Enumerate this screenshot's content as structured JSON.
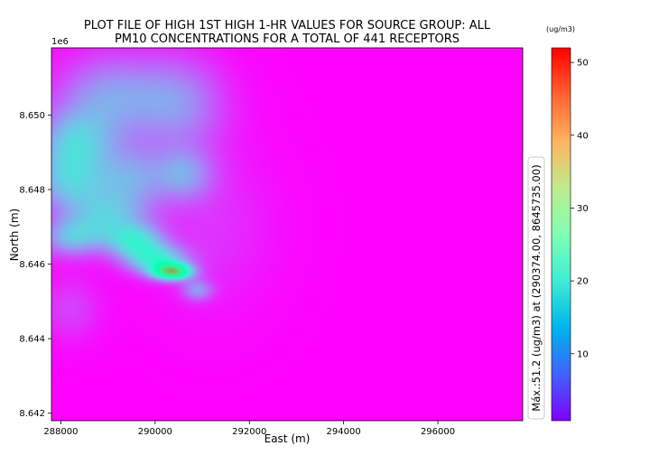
{
  "chart_data": {
    "type": "heatmap",
    "title_line1": "PLOT FILE OF HIGH 1ST HIGH  1-HR VALUES FOR SOURCE GROUP: ALL",
    "title_line2": "PM10 CONCENTRATIONS FOR A TOTAL OF 441 RECEPTORS",
    "xlabel": "East (m)",
    "ylabel": "North (m)",
    "y_offset_label": "1e6",
    "xlim": [
      287800,
      297800
    ],
    "ylim": [
      8641800,
      8651800
    ],
    "x_ticks": [
      {
        "value": 288000,
        "label": "288000"
      },
      {
        "value": 290000,
        "label": "290000"
      },
      {
        "value": 292000,
        "label": "292000"
      },
      {
        "value": 294000,
        "label": "294000"
      },
      {
        "value": 296000,
        "label": "296000"
      }
    ],
    "y_ticks": [
      {
        "value": 8642000,
        "label": "8.642"
      },
      {
        "value": 8644000,
        "label": "8.644"
      },
      {
        "value": 8646000,
        "label": "8.646"
      },
      {
        "value": 8648000,
        "label": "8.648"
      },
      {
        "value": 8650000,
        "label": "8.650"
      }
    ],
    "colorbar": {
      "unit_label": "(ug/m3)",
      "min": 0.8,
      "max": 52,
      "ticks": [
        {
          "value": 10,
          "label": "10"
        },
        {
          "value": 20,
          "label": "20"
        },
        {
          "value": 30,
          "label": "30"
        },
        {
          "value": 40,
          "label": "40"
        },
        {
          "value": 50,
          "label": "50"
        }
      ]
    },
    "max_annotation": "Máx.:51.2 (ug/m3) at (290374.00, 8645735.00)",
    "peak": {
      "x": 290374,
      "y": 8645735,
      "value": 51.2
    },
    "background_value": 1,
    "hotspots": [
      {
        "x": 290374,
        "y": 8645800,
        "sx": 280,
        "sy": 150,
        "value": 30
      },
      {
        "x": 290050,
        "y": 8646100,
        "sx": 450,
        "sy": 280,
        "value": 16
      },
      {
        "x": 289600,
        "y": 8646600,
        "sx": 420,
        "sy": 320,
        "value": 14
      },
      {
        "x": 290900,
        "y": 8645300,
        "sx": 230,
        "sy": 200,
        "value": 9
      },
      {
        "x": 289000,
        "y": 8647200,
        "sx": 600,
        "sy": 500,
        "value": 12
      },
      {
        "x": 288200,
        "y": 8646700,
        "sx": 450,
        "sy": 350,
        "value": 11
      },
      {
        "x": 288200,
        "y": 8648200,
        "sx": 600,
        "sy": 600,
        "value": 13
      },
      {
        "x": 289500,
        "y": 8648300,
        "sx": 500,
        "sy": 600,
        "value": 9
      },
      {
        "x": 290600,
        "y": 8648400,
        "sx": 450,
        "sy": 500,
        "value": 9
      },
      {
        "x": 288300,
        "y": 8649300,
        "sx": 600,
        "sy": 600,
        "value": 12
      },
      {
        "x": 289000,
        "y": 8650500,
        "sx": 800,
        "sy": 800,
        "value": 10
      },
      {
        "x": 290500,
        "y": 8650300,
        "sx": 700,
        "sy": 900,
        "value": 9
      },
      {
        "x": 288200,
        "y": 8644800,
        "sx": 450,
        "sy": 600,
        "value": 4
      },
      {
        "x": 291200,
        "y": 8647000,
        "sx": 900,
        "sy": 1500,
        "value": 3
      }
    ]
  }
}
